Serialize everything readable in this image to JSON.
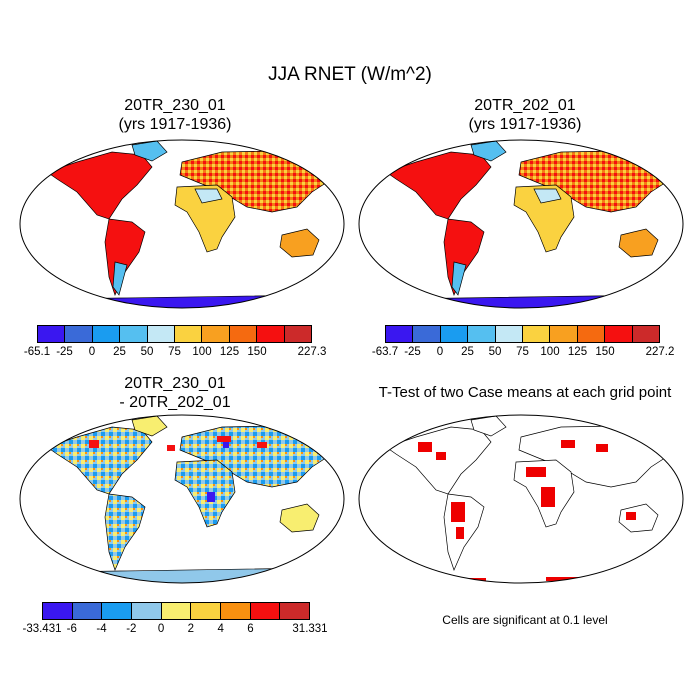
{
  "figure_title": "JJA RNET (W/m^2)",
  "panels": [
    {
      "title_line1": "20TR_230_01",
      "title_line2": "(yrs 1917-1936)"
    },
    {
      "title_line1": "20TR_202_01",
      "title_line2": "(yrs 1917-1936)"
    },
    {
      "title_line1": "20TR_230_01",
      "title_line2": "- 20TR_202_01"
    },
    {
      "title_line1": "T-Test of two Case means at each grid point",
      "title_line2": ""
    }
  ],
  "significance_note": "Cells are significant at 0.1 level",
  "colorbars": [
    {
      "labels": [
        "-65.1",
        "-25",
        "0",
        "25",
        "50",
        "75",
        "100",
        "125",
        "150",
        "227.3"
      ],
      "colors": [
        "#3a17f0",
        "#3a6ad8",
        "#1a9cf0",
        "#55bff0",
        "#c4e8f5",
        "#fad240",
        "#f8a020",
        "#f56a10",
        "#f51010",
        "#cc2a2a"
      ]
    },
    {
      "labels": [
        "-63.7",
        "-25",
        "0",
        "25",
        "50",
        "75",
        "100",
        "125",
        "150",
        "227.2"
      ],
      "colors": [
        "#3a17f0",
        "#3a6ad8",
        "#1a9cf0",
        "#55bff0",
        "#c4e8f5",
        "#fad240",
        "#f8a020",
        "#f56a10",
        "#f51010",
        "#cc2a2a"
      ]
    },
    {
      "labels": [
        "-33.431",
        "-6",
        "-4",
        "-2",
        "0",
        "2",
        "4",
        "6",
        "31.331"
      ],
      "colors": [
        "#3a17f0",
        "#3a6ad8",
        "#1a9cf0",
        "#90c8ea",
        "#f8ee70",
        "#fad240",
        "#f89010",
        "#f51010",
        "#cc2a2a"
      ]
    }
  ],
  "map_colors": {
    "ocean": "#ffffff",
    "coast": "#000000",
    "significant": "#ee0000"
  }
}
